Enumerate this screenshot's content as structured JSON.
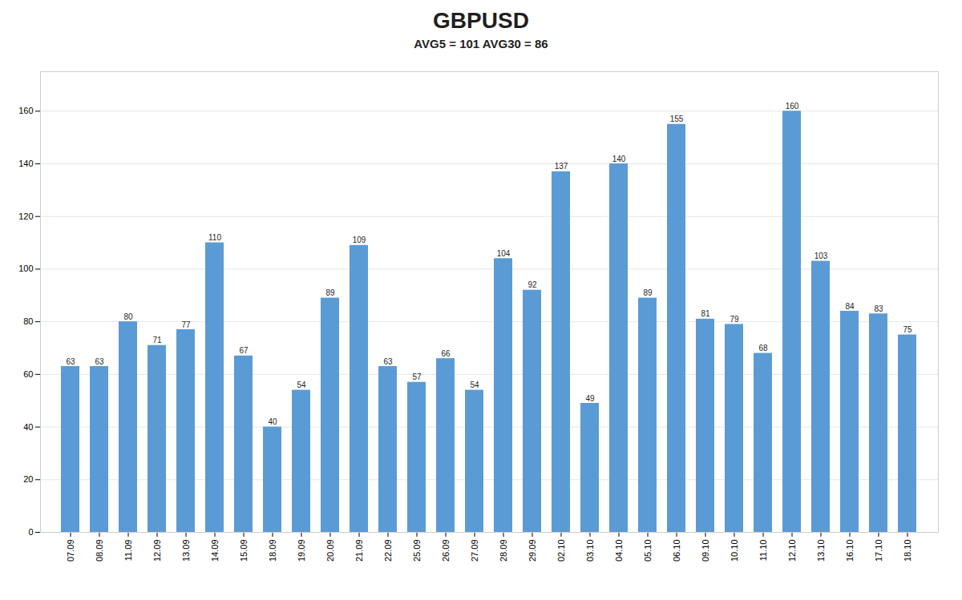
{
  "chart_data": {
    "type": "bar",
    "title": "GBPUSD",
    "subtitle": "AVG5 = 101  AVG30 = 86",
    "categories": [
      "07.09",
      "08.09",
      "11.09",
      "12.09",
      "13.09",
      "14.09",
      "15.09",
      "18.09",
      "19.09",
      "20.09",
      "21.09",
      "22.09",
      "25.09",
      "26.09",
      "27.09",
      "28.09",
      "29.09",
      "02.10",
      "03.10",
      "04.10",
      "05.10",
      "06.10",
      "09.10",
      "10.10",
      "11.10",
      "12.10",
      "13.10",
      "16.10",
      "17.10",
      "18.10"
    ],
    "values": [
      63,
      63,
      80,
      71,
      77,
      110,
      67,
      40,
      54,
      89,
      109,
      63,
      57,
      66,
      54,
      104,
      92,
      137,
      49,
      140,
      89,
      155,
      81,
      79,
      68,
      160,
      103,
      84,
      83,
      75
    ],
    "color": "#5B9BD5",
    "ylim": [
      0,
      175
    ],
    "yticks": [
      0,
      20,
      40,
      60,
      80,
      100,
      120,
      140,
      160
    ],
    "grid": true,
    "data_labels": true
  }
}
